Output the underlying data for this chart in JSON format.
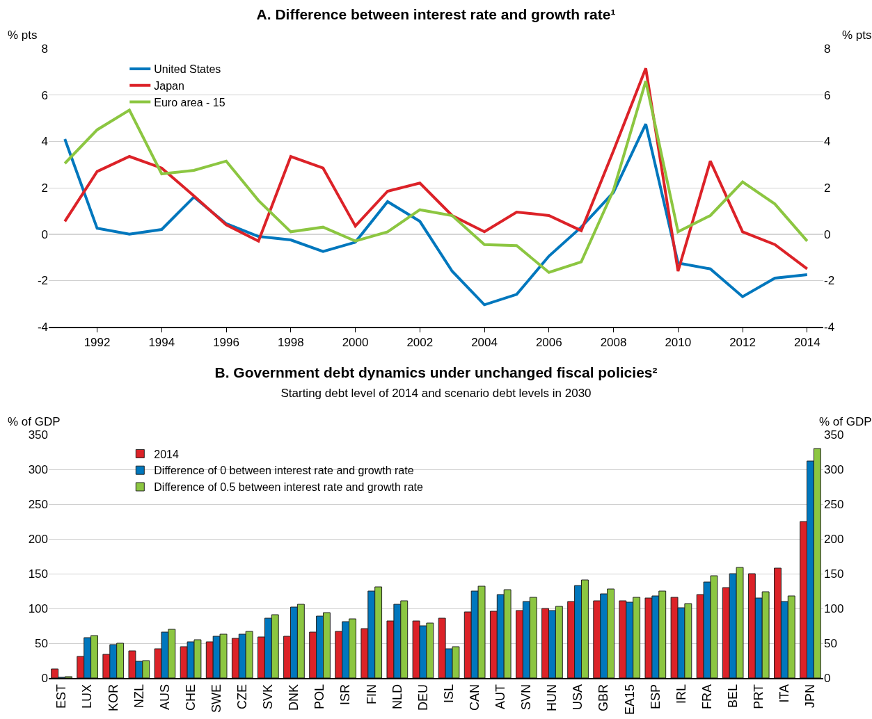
{
  "chart_data": [
    {
      "type": "line",
      "title": "A. Difference between interest rate and growth rate¹",
      "ylabel": "% pts",
      "y2label": "% pts",
      "x": [
        1991,
        1992,
        1993,
        1994,
        1995,
        1996,
        1997,
        1998,
        1999,
        2000,
        2001,
        2002,
        2003,
        2004,
        2005,
        2006,
        2007,
        2008,
        2009,
        2010,
        2011,
        2012,
        2013,
        2014
      ],
      "series": [
        {
          "name": "United States",
          "color": "#0077bd",
          "values": [
            4.1,
            0.25,
            0.0,
            0.2,
            1.6,
            0.45,
            -0.1,
            -0.25,
            -0.75,
            -0.35,
            1.4,
            0.55,
            -1.6,
            -3.05,
            -2.6,
            -0.95,
            0.3,
            1.8,
            4.75,
            -1.25,
            -1.5,
            -2.7,
            -1.9,
            -1.75
          ]
        },
        {
          "name": "Japan",
          "color": "#dc2228",
          "values": [
            0.55,
            2.7,
            3.35,
            2.85,
            1.65,
            0.4,
            -0.3,
            3.35,
            2.85,
            0.35,
            1.85,
            2.2,
            0.8,
            0.1,
            0.95,
            0.8,
            0.15,
            3.6,
            7.15,
            -1.6,
            3.15,
            0.1,
            -0.45,
            -1.5
          ]
        },
        {
          "name": "Euro area - 15",
          "color": "#8cc641",
          "values": [
            3.05,
            4.5,
            5.35,
            2.6,
            2.75,
            3.15,
            1.45,
            0.1,
            0.3,
            -0.3,
            0.1,
            1.05,
            0.8,
            -0.45,
            -0.5,
            -1.65,
            -1.2,
            1.9,
            6.6,
            0.1,
            0.8,
            2.25,
            1.3,
            -0.3
          ]
        }
      ],
      "xlim": [
        1990.5,
        2014.5
      ],
      "xticks": [
        1992,
        1994,
        1996,
        1998,
        2000,
        2002,
        2004,
        2006,
        2008,
        2010,
        2012,
        2014
      ],
      "ylim": [
        -4,
        8
      ],
      "yticks": [
        -4,
        -2,
        0,
        2,
        4,
        6,
        8
      ],
      "y2lim": [
        -4,
        8
      ],
      "y2ticks": [
        -4,
        -2,
        0,
        2,
        4,
        6,
        8
      ],
      "ref_lines": [
        {
          "axis": "y",
          "value": 0,
          "color": "#000000"
        }
      ],
      "grid": "y",
      "legend": "top left",
      "marker": "none",
      "line_style": "solid"
    },
    {
      "type": "bar",
      "title": "B. Government debt dynamics under unchanged fiscal policies²",
      "subtitle": "Starting debt level of 2014 and scenario debt levels in 2030",
      "ylabel": "% of GDP",
      "y2label": "% of GDP",
      "categories": [
        "EST",
        "LUX",
        "KOR",
        "NZL",
        "AUS",
        "CHE",
        "SWE",
        "CZE",
        "SVK",
        "DNK",
        "POL",
        "ISR",
        "FIN",
        "NLD",
        "DEU",
        "ISL",
        "CAN",
        "AUT",
        "SVN",
        "HUN",
        "USA",
        "GBR",
        "EA15",
        "ESP",
        "IRL",
        "FRA",
        "BEL",
        "PRT",
        "ITA",
        "JPN"
      ],
      "series": [
        {
          "name": "2014",
          "color": "#dc2228",
          "values": [
            13,
            31,
            34,
            39,
            42,
            45,
            52,
            57,
            59,
            60,
            66,
            67,
            71,
            82,
            82,
            86,
            95,
            96,
            97,
            100,
            110,
            111,
            111,
            115,
            116,
            120,
            130,
            150,
            158,
            225
          ]
        },
        {
          "name": "Difference of 0 between interest rate and growth rate",
          "color": "#0077bd",
          "values": [
            1,
            58,
            48,
            24,
            66,
            52,
            60,
            63,
            86,
            102,
            89,
            81,
            125,
            106,
            75,
            42,
            125,
            120,
            110,
            97,
            133,
            121,
            109,
            118,
            101,
            138,
            150,
            115,
            110,
            312
          ]
        },
        {
          "name": "Difference of 0.5 between interest rate and growth rate",
          "color": "#8cc641",
          "values": [
            2,
            61,
            50,
            25,
            70,
            55,
            63,
            67,
            91,
            106,
            94,
            85,
            131,
            111,
            79,
            45,
            132,
            127,
            116,
            103,
            141,
            128,
            116,
            125,
            107,
            147,
            159,
            124,
            118,
            330
          ]
        }
      ],
      "ylim": [
        0,
        350
      ],
      "yticks": [
        0,
        50,
        100,
        150,
        200,
        250,
        300,
        350
      ],
      "y2lim": [
        0,
        350
      ],
      "y2ticks": [
        0,
        50,
        100,
        150,
        200,
        250,
        300,
        350
      ],
      "grid": "y",
      "legend": "top left"
    }
  ]
}
